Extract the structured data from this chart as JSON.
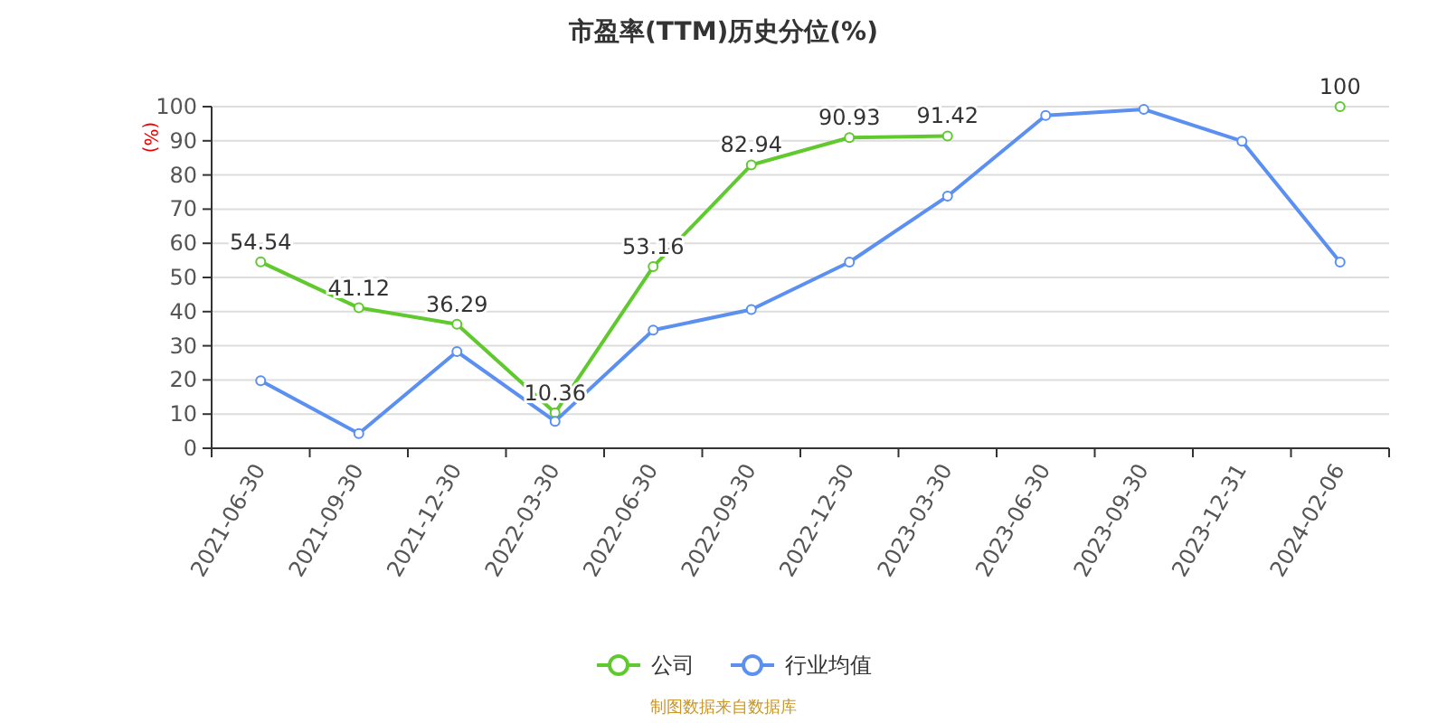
{
  "chart_data": {
    "type": "line",
    "title": "市盈率(TTM)历史分位(%)",
    "ylabel": "(%)",
    "categories": [
      "2021-06-30",
      "2021-09-30",
      "2021-12-30",
      "2022-03-30",
      "2022-06-30",
      "2022-09-30",
      "2022-12-30",
      "2023-03-30",
      "2023-06-30",
      "2023-09-30",
      "2023-12-31",
      "2024-02-06"
    ],
    "series": [
      {
        "name": "公司",
        "color": "#5fc92e",
        "values": [
          54.54,
          41.12,
          36.29,
          10.36,
          53.16,
          82.94,
          90.93,
          91.42,
          null,
          null,
          null,
          100
        ],
        "value_labels": [
          "54.54",
          "41.12",
          "36.29",
          "10.36",
          "53.16",
          "82.94",
          "90.93",
          "91.42",
          null,
          null,
          null,
          "100"
        ]
      },
      {
        "name": "行业均值",
        "color": "#5b8ff0",
        "values": [
          19.8,
          4.3,
          28.3,
          7.9,
          34.6,
          40.6,
          54.5,
          73.8,
          97.4,
          99.2,
          89.9,
          54.5
        ]
      }
    ],
    "ylim": [
      0,
      100
    ],
    "yticks": [
      0,
      10,
      20,
      30,
      40,
      50,
      60,
      70,
      80,
      90,
      100
    ],
    "grid": "y",
    "legend": "bottom",
    "marker": "circle",
    "line_style": "solid",
    "annotations": [
      "制图数据来自数据库"
    ]
  }
}
